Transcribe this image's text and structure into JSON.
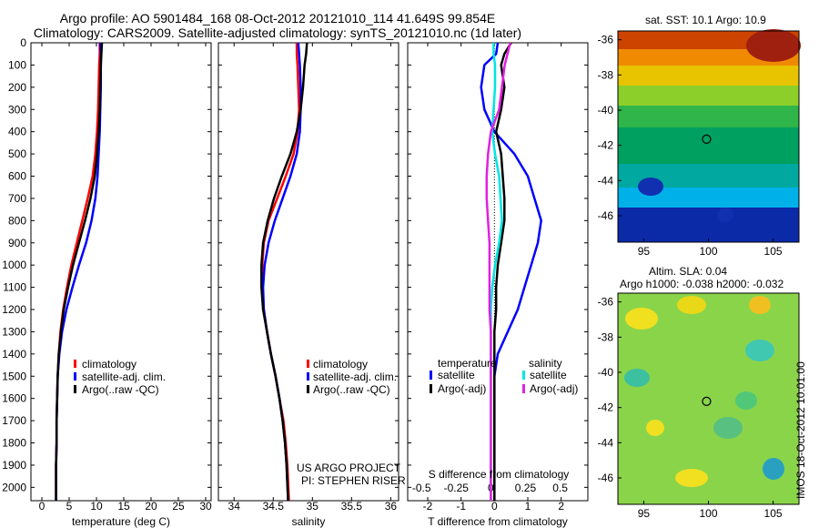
{
  "header": {
    "title_line1": "Argo profile: AO 5901484_168 08-Oct-2012 20121010_114 41.649S 99.854E",
    "title_line2": "Climatology: CARS2009. Satellite-adjusted climatology: synTS_20121010.nc (1d later)"
  },
  "colors": {
    "climatology": "#ff0000",
    "satellite": "#0000ff",
    "argo": "#000000",
    "cyan": "#00e5e5",
    "magenta": "#e020e0"
  },
  "depth_ticks": [
    0,
    100,
    200,
    300,
    400,
    500,
    600,
    700,
    800,
    900,
    1000,
    1100,
    1200,
    1300,
    1400,
    1500,
    1600,
    1700,
    1800,
    1900,
    2000
  ],
  "panels": {
    "temperature": {
      "xlabel": "temperature (deg C)",
      "xticks": [
        "0",
        "5",
        "10",
        "15",
        "20",
        "25",
        "30"
      ],
      "legend": [
        "climatology",
        "satellite-adj. clim.",
        "Argo(..raw -QC)"
      ]
    },
    "salinity": {
      "xlabel": "salinity",
      "xticks": [
        "34",
        "34.5",
        "35",
        "35.5",
        "36"
      ],
      "legend": [
        "climatology",
        "satellite-adj. clim.",
        "Argo(..raw -QC)"
      ],
      "credit_line1": "US ARGO PROJECT",
      "credit_line2": "PI: STEPHEN RISER"
    },
    "difference": {
      "xlabel": "T difference from climatology",
      "xlabel_top": "S difference from climatology",
      "xticks_bottom": [
        "-2",
        "-1",
        "0",
        "1",
        "2"
      ],
      "xticks_top": [
        "-0.5",
        "-0.25",
        "0",
        "0.25",
        "0.5"
      ],
      "legend_temp_title": "temperature",
      "legend_sal_title": "salinity",
      "legend_temp": [
        "satellite",
        "Argo(-adj)"
      ],
      "legend_sal": [
        "satellite",
        "Argo(-adj)"
      ]
    }
  },
  "maps": {
    "sst_title": "sat. SST: 10.1  Argo: 10.9",
    "sla_title_line1": "Altim. SLA: 0.04",
    "sla_title_line2": "Argo h1000: -0.038 h2000: -0.032",
    "lat_ticks": [
      "-36",
      "-38",
      "-40",
      "-42",
      "-44",
      "-46"
    ],
    "lon_ticks": [
      "95",
      "100",
      "105"
    ],
    "imos_stamp": "IMOS 18-Oct-2012 10:01:00"
  },
  "chart_data": [
    {
      "type": "line",
      "title": "",
      "xlabel": "temperature (deg C)",
      "ylabel": "",
      "xlim": [
        -2,
        31
      ],
      "ylim": [
        2060,
        0
      ],
      "series": [
        {
          "name": "climatology",
          "color": "#ff0000",
          "x": [
            10.6,
            10.6,
            10.5,
            10.4,
            10.3,
            10.1,
            9.8,
            9.3,
            8.4,
            7.4,
            6.4,
            5.4,
            4.6,
            3.9,
            3.4,
            3.1,
            2.9,
            2.8,
            2.7,
            2.7,
            2.6,
            2.6
          ],
          "y": [
            0,
            50,
            100,
            200,
            300,
            400,
            500,
            600,
            700,
            800,
            900,
            1000,
            1100,
            1200,
            1300,
            1400,
            1500,
            1600,
            1700,
            1800,
            1900,
            2060
          ]
        },
        {
          "name": "satellite-adj. clim.",
          "color": "#0000ff",
          "x": [
            10.7,
            10.8,
            10.8,
            10.8,
            10.7,
            10.6,
            10.4,
            10.2,
            9.8,
            9.1,
            8.1,
            6.8,
            5.6,
            4.5,
            3.7,
            3.2,
            2.9,
            2.8,
            2.7,
            2.7,
            2.6,
            2.6
          ],
          "y": [
            0,
            50,
            100,
            200,
            300,
            400,
            500,
            600,
            700,
            800,
            900,
            1000,
            1100,
            1200,
            1300,
            1400,
            1500,
            1600,
            1700,
            1800,
            1900,
            2060
          ]
        },
        {
          "name": "Argo(..raw -QC)",
          "color": "#000000",
          "x": [
            11.0,
            10.9,
            10.8,
            10.7,
            10.6,
            10.4,
            10.1,
            9.7,
            8.9,
            7.9,
            6.8,
            5.7,
            4.8,
            4.0,
            3.5,
            3.1,
            2.9,
            2.8,
            2.7,
            2.7,
            2.6,
            2.6
          ],
          "y": [
            0,
            50,
            100,
            200,
            300,
            400,
            500,
            600,
            700,
            800,
            900,
            1000,
            1100,
            1200,
            1300,
            1400,
            1500,
            1600,
            1700,
            1800,
            1900,
            2060
          ]
        }
      ]
    },
    {
      "type": "line",
      "title": "",
      "xlabel": "salinity",
      "ylabel": "",
      "xlim": [
        33.8,
        36.1
      ],
      "ylim": [
        2060,
        0
      ],
      "series": [
        {
          "name": "climatology",
          "color": "#ff0000",
          "x": [
            34.8,
            34.8,
            34.81,
            34.82,
            34.83,
            34.81,
            34.76,
            34.66,
            34.55,
            34.44,
            34.38,
            34.36,
            34.36,
            34.38,
            34.42,
            34.47,
            34.53,
            34.58,
            34.63,
            34.66,
            34.68,
            34.7
          ],
          "y": [
            0,
            50,
            100,
            200,
            300,
            400,
            500,
            600,
            700,
            800,
            900,
            1000,
            1100,
            1200,
            1300,
            1400,
            1500,
            1600,
            1700,
            1800,
            1900,
            2060
          ]
        },
        {
          "name": "satellite-adj. clim.",
          "color": "#0000ff",
          "x": [
            34.82,
            34.83,
            34.84,
            34.85,
            34.85,
            34.84,
            34.8,
            34.72,
            34.62,
            34.52,
            34.44,
            34.39,
            34.37,
            34.38,
            34.42,
            34.47,
            34.53,
            34.58,
            34.62,
            34.65,
            34.67,
            34.69
          ],
          "y": [
            0,
            50,
            100,
            200,
            300,
            400,
            500,
            600,
            700,
            800,
            900,
            1000,
            1100,
            1200,
            1300,
            1400,
            1500,
            1600,
            1700,
            1800,
            1900,
            2060
          ]
        },
        {
          "name": "Argo(..raw -QC)",
          "color": "#000000",
          "x": [
            34.93,
            34.92,
            34.9,
            34.88,
            34.85,
            34.8,
            34.72,
            34.61,
            34.51,
            34.43,
            34.37,
            34.35,
            34.35,
            34.37,
            34.42,
            34.47,
            34.53,
            34.58,
            34.62,
            34.65,
            34.67,
            34.69
          ],
          "y": [
            0,
            50,
            100,
            200,
            300,
            400,
            500,
            600,
            700,
            800,
            900,
            1000,
            1100,
            1200,
            1300,
            1400,
            1500,
            1600,
            1700,
            1800,
            1900,
            2060
          ]
        }
      ]
    },
    {
      "type": "line",
      "title": "",
      "xlabel": "T difference from climatology",
      "ylabel": "",
      "xlim": [
        -2.6,
        2.8
      ],
      "ylim": [
        2060,
        0
      ],
      "series": [
        {
          "name": "satellite",
          "color": "#0000ff",
          "x": [
            0.1,
            0.05,
            -0.3,
            -0.4,
            -0.3,
            0.0,
            0.6,
            1.0,
            1.2,
            1.4,
            1.3,
            1.1,
            0.9,
            0.7,
            0.4,
            0.1,
            0.0,
            0.0,
            0.0,
            0.0,
            0.0,
            0.0
          ],
          "y": [
            0,
            50,
            100,
            200,
            300,
            400,
            500,
            600,
            700,
            800,
            900,
            1000,
            1100,
            1200,
            1300,
            1400,
            1500,
            1600,
            1700,
            1800,
            1900,
            2060
          ]
        },
        {
          "name": "Argo(-adj)",
          "color": "#000000",
          "x": [
            0.5,
            0.3,
            0.2,
            0.3,
            0.2,
            0.05,
            0.2,
            0.25,
            0.3,
            0.3,
            0.2,
            0.1,
            0.05,
            0.05,
            0.0,
            0.0,
            0.0,
            0.0,
            0.0,
            0.0,
            0.0,
            0.0
          ],
          "y": [
            0,
            50,
            100,
            200,
            300,
            400,
            500,
            600,
            700,
            800,
            900,
            1000,
            1100,
            1200,
            1300,
            1400,
            1500,
            1600,
            1700,
            1800,
            1900,
            2060
          ]
        }
      ]
    },
    {
      "type": "line",
      "title": "",
      "xlabel": "S difference from climatology",
      "ylabel": "",
      "xlim": [
        -0.6,
        0.7
      ],
      "ylim": [
        2060,
        0
      ],
      "series": [
        {
          "name": "satellite",
          "color": "#00e5e5",
          "x": [
            0.02,
            0.02,
            0.03,
            0.03,
            0.02,
            0.01,
            0.03,
            0.06,
            0.07,
            0.08,
            0.06,
            0.03,
            0.01,
            0.0,
            0.0,
            0.0,
            0.0,
            0.0,
            0.0,
            0.0,
            0.0,
            0.0
          ],
          "y": [
            0,
            50,
            100,
            200,
            300,
            400,
            500,
            600,
            700,
            800,
            900,
            1000,
            1100,
            1200,
            1300,
            1400,
            1500,
            1600,
            1700,
            1800,
            1900,
            2060
          ]
        },
        {
          "name": "Argo(-adj)",
          "color": "#e020e0",
          "x": [
            0.14,
            0.12,
            0.1,
            0.08,
            0.06,
            0.0,
            -0.02,
            -0.03,
            -0.03,
            -0.02,
            -0.01,
            -0.01,
            -0.01,
            -0.01,
            0.0,
            0.0,
            0.0,
            0.0,
            0.0,
            0.0,
            0.0,
            0.0
          ],
          "y": [
            0,
            50,
            100,
            200,
            300,
            400,
            500,
            600,
            700,
            800,
            900,
            1000,
            1100,
            1200,
            1300,
            1400,
            1500,
            1600,
            1700,
            1800,
            1900,
            2060
          ]
        }
      ]
    },
    {
      "type": "heatmap",
      "title": "sat. SST: 10.1  Argo: 10.9",
      "xlabel": "",
      "ylabel": "",
      "xlim": [
        93,
        107
      ],
      "ylim": [
        -47.5,
        -35.5
      ],
      "marker": {
        "lon": 99.854,
        "lat": -41.649
      }
    },
    {
      "type": "heatmap",
      "title": "Altim. SLA: 0.04",
      "xlabel": "",
      "ylabel": "",
      "xlim": [
        93,
        107
      ],
      "ylim": [
        -47.5,
        -35.5
      ],
      "marker": {
        "lon": 99.854,
        "lat": -41.649
      }
    }
  ]
}
